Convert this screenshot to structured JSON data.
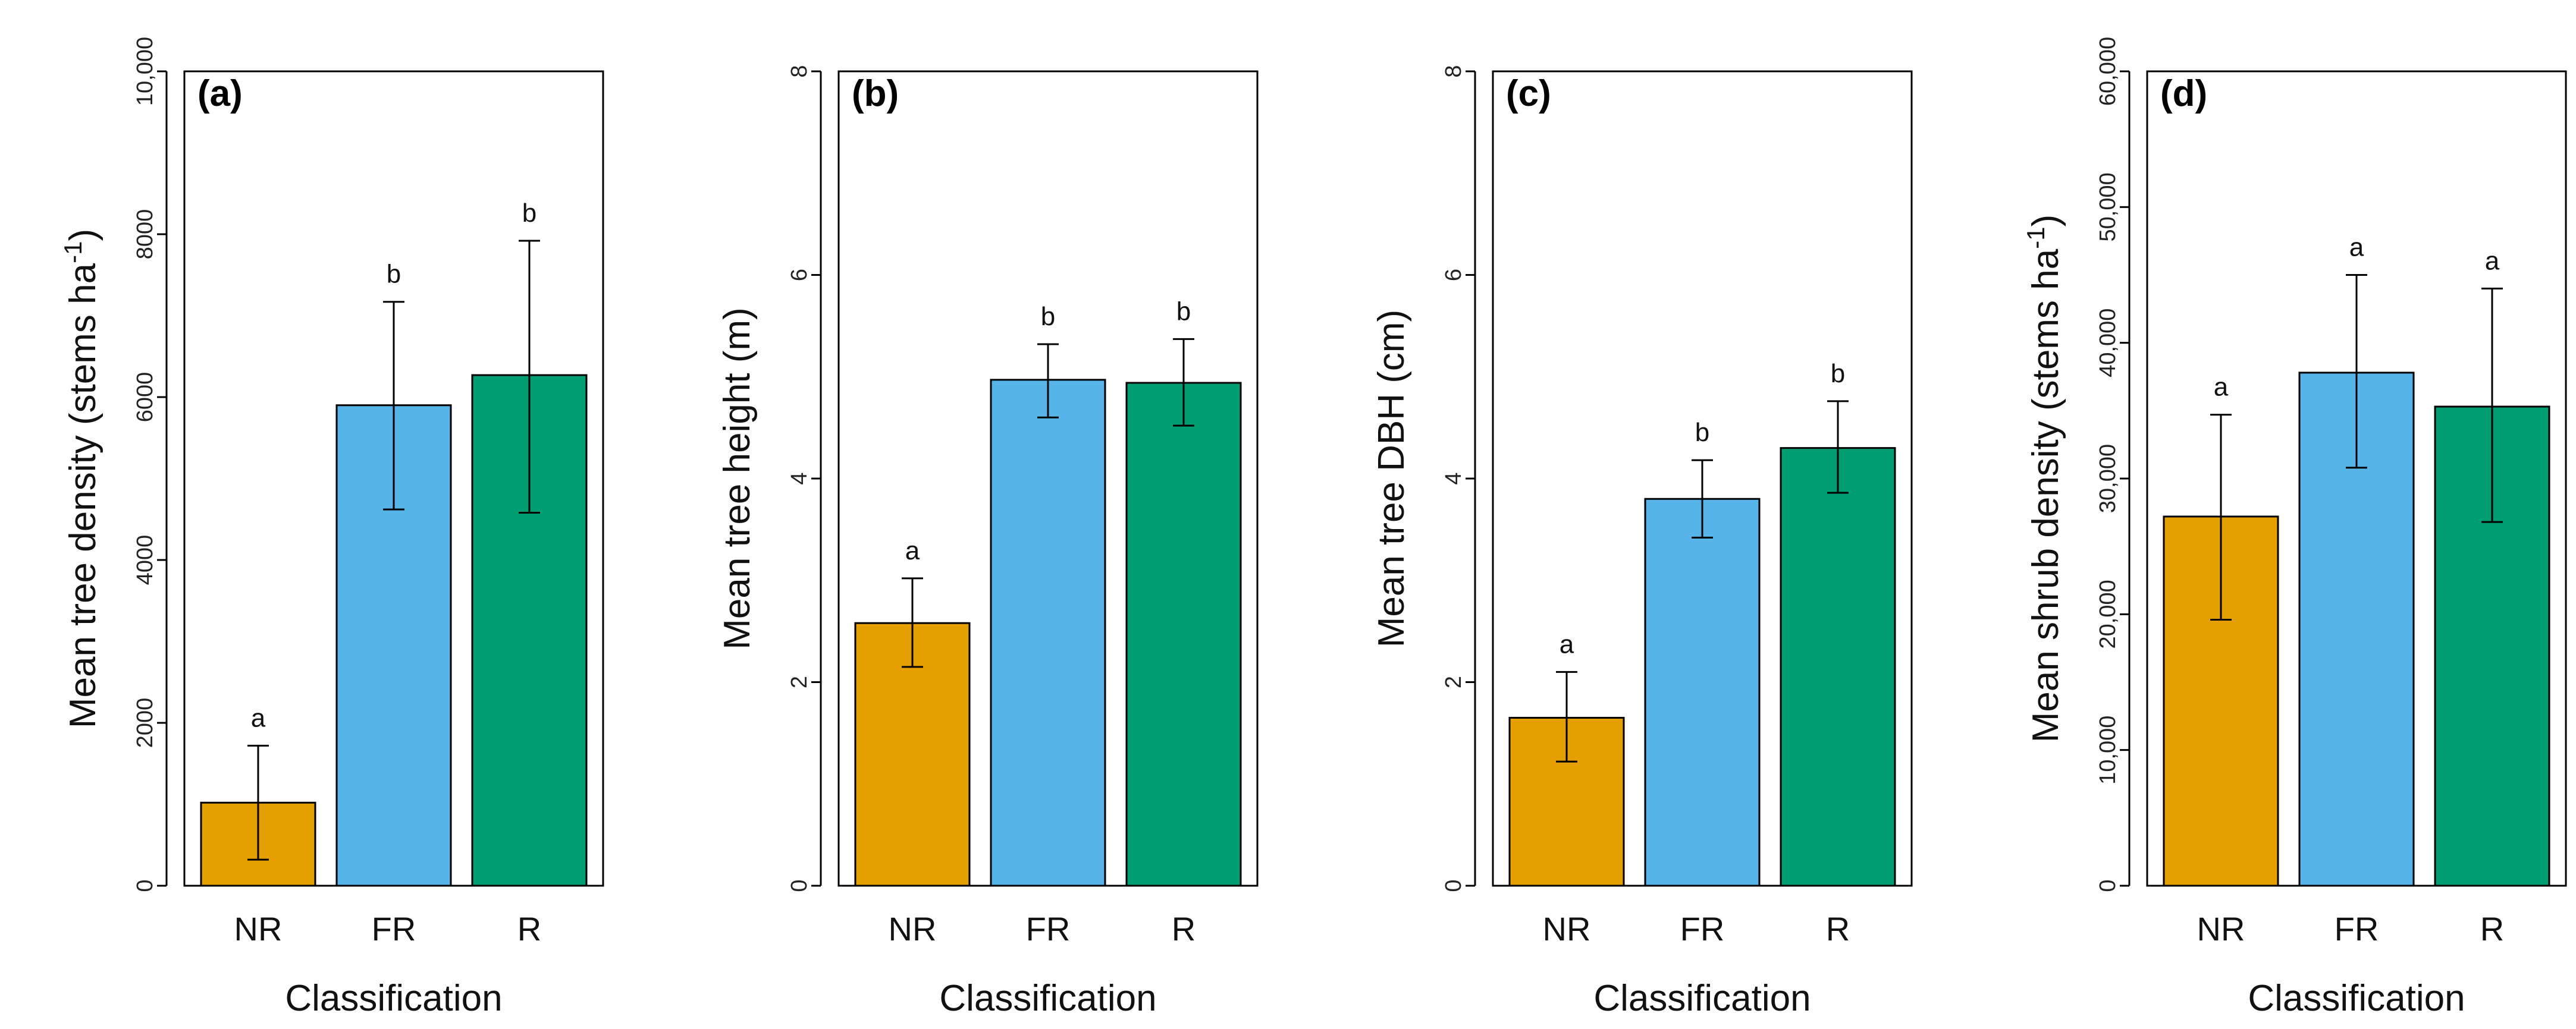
{
  "chart_data": [
    {
      "type": "bar",
      "panel": "(a)",
      "categories": [
        "NR",
        "FR",
        "R"
      ],
      "values": [
        1020,
        5900,
        6270
      ],
      "error_low": [
        320,
        4620,
        4580
      ],
      "error_high": [
        1720,
        7170,
        7920
      ],
      "significance": [
        "a",
        "b",
        "b"
      ],
      "xlabel": "Classification",
      "ylabel": "Mean tree density (stems ha",
      "ylabel_sup": "-1",
      "ylabel_suffix": ")",
      "ylim": [
        0,
        10000
      ],
      "yticks": [
        0,
        2000,
        4000,
        6000,
        8000,
        10000
      ],
      "ytick_labels": [
        "0",
        "2000",
        "4000",
        "6000",
        "8000",
        "10,000"
      ]
    },
    {
      "type": "bar",
      "panel": "(b)",
      "categories": [
        "NR",
        "FR",
        "R"
      ],
      "values": [
        2.58,
        4.97,
        4.94
      ],
      "error_low": [
        2.15,
        4.6,
        4.52
      ],
      "error_high": [
        3.02,
        5.32,
        5.37
      ],
      "significance": [
        "a",
        "b",
        "b"
      ],
      "xlabel": "Classification",
      "ylabel": "Mean tree height (m)",
      "ylim": [
        0,
        8
      ],
      "yticks": [
        0,
        2,
        4,
        6,
        8
      ],
      "ytick_labels": [
        "0",
        "2",
        "4",
        "6",
        "8"
      ]
    },
    {
      "type": "bar",
      "panel": "(c)",
      "categories": [
        "NR",
        "FR",
        "R"
      ],
      "values": [
        1.65,
        3.8,
        4.3
      ],
      "error_low": [
        1.22,
        3.42,
        3.86
      ],
      "error_high": [
        2.1,
        4.18,
        4.76
      ],
      "significance": [
        "a",
        "b",
        "b"
      ],
      "xlabel": "Classification",
      "ylabel": "Mean tree DBH (cm)",
      "ylim": [
        0,
        8
      ],
      "yticks": [
        0,
        2,
        4,
        6,
        8
      ],
      "ytick_labels": [
        "0",
        "2",
        "4",
        "6",
        "8"
      ]
    },
    {
      "type": "bar",
      "panel": "(d)",
      "categories": [
        "NR",
        "FR",
        "R"
      ],
      "values": [
        27200,
        37800,
        35300
      ],
      "error_low": [
        19600,
        30800,
        26800
      ],
      "error_high": [
        34700,
        45000,
        44000
      ],
      "significance": [
        "a",
        "a",
        "a"
      ],
      "xlabel": "Classification",
      "ylabel": "Mean shrub density (stems ha",
      "ylabel_sup": "-1",
      "ylabel_suffix": ")",
      "ylim": [
        0,
        60000
      ],
      "yticks": [
        0,
        10000,
        20000,
        30000,
        40000,
        50000,
        60000
      ],
      "ytick_labels": [
        "0",
        "10,000",
        "20,000",
        "30,000",
        "40,000",
        "50,000",
        "60,000"
      ]
    }
  ],
  "colors": {
    "NR": "#E69F00",
    "FR": "#56B4E9",
    "R": "#009E73"
  }
}
